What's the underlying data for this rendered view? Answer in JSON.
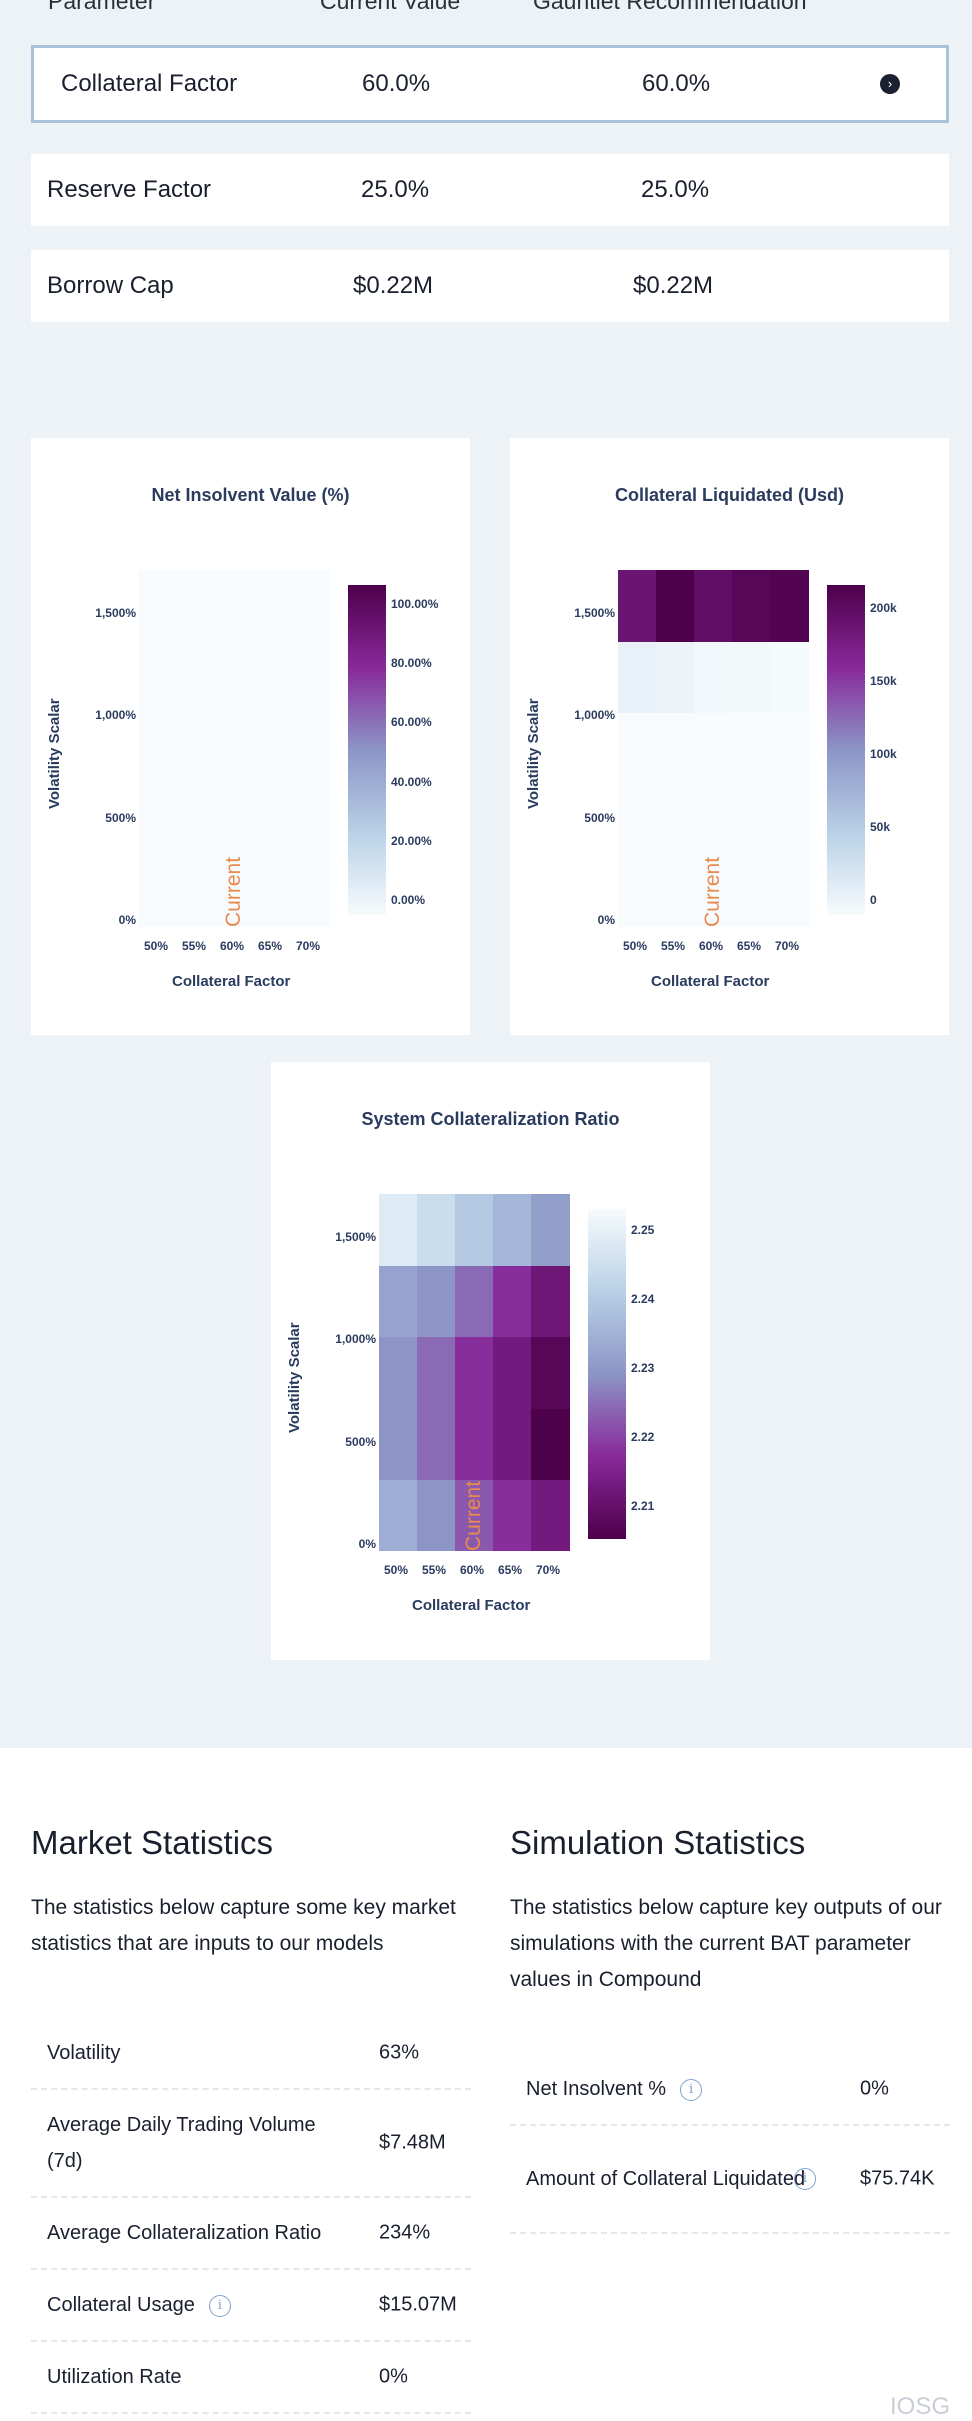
{
  "params": {
    "headers": [
      "Parameter",
      "Current Value",
      "Gauntlet Recommendation"
    ],
    "rows": [
      {
        "name": "Collateral Factor",
        "current": "60.0%",
        "recommended": "60.0%",
        "selected": true
      },
      {
        "name": "Reserve Factor",
        "current": "25.0%",
        "recommended": "25.0%",
        "selected": false
      },
      {
        "name": "Borrow Cap",
        "current": "$0.22M",
        "recommended": "$0.22M",
        "selected": false
      }
    ]
  },
  "chart_data": [
    {
      "type": "heatmap",
      "title": "Net Insolvent Value (%)",
      "xlabel": "Collateral Factor",
      "ylabel": "Volatility Scalar",
      "x": [
        "50%",
        "55%",
        "60%",
        "65%",
        "70%"
      ],
      "y": [
        "0%",
        "500%",
        "1,000%",
        "1,500%"
      ],
      "z": [
        [
          0,
          0,
          0,
          0,
          0
        ],
        [
          0,
          0,
          0,
          0,
          0
        ],
        [
          0,
          0,
          0,
          0,
          0
        ],
        [
          0,
          0,
          0,
          0,
          0
        ],
        [
          0,
          0,
          0,
          0,
          0
        ]
      ],
      "colorbar_ticks": [
        "0.00%",
        "20.00%",
        "40.00%",
        "60.00%",
        "80.00%",
        "100.00%"
      ],
      "annotation": "Current",
      "annotation_x": "60%"
    },
    {
      "type": "heatmap",
      "title": "Collateral Liquidated (Usd)",
      "xlabel": "Collateral Factor",
      "ylabel": "Volatility Scalar",
      "x": [
        "50%",
        "55%",
        "60%",
        "65%",
        "70%"
      ],
      "y": [
        "0%",
        "500%",
        "1,000%",
        "1,500%"
      ],
      "z": [
        [
          0,
          0,
          0,
          0,
          0
        ],
        [
          0,
          0,
          0,
          0,
          0
        ],
        [
          0,
          0,
          0,
          0,
          0
        ],
        [
          14000,
          10000,
          6000,
          4000,
          2000
        ],
        [
          205000,
          235000,
          215000,
          225000,
          230000
        ]
      ],
      "colorbar_ticks": [
        "0",
        "50k",
        "100k",
        "150k",
        "200k"
      ],
      "annotation": "Current",
      "annotation_x": "60%"
    },
    {
      "type": "heatmap",
      "title": "System Collateralization Ratio",
      "xlabel": "Collateral Factor",
      "ylabel": "Volatility Scalar",
      "x": [
        "50%",
        "55%",
        "60%",
        "65%",
        "70%"
      ],
      "y": [
        "0%",
        "500%",
        "1,000%",
        "1,500%"
      ],
      "z": [
        [
          2.235,
          2.23,
          2.223,
          2.218,
          2.213
        ],
        [
          2.23,
          2.225,
          2.218,
          2.213,
          2.205
        ],
        [
          2.23,
          2.225,
          2.218,
          2.213,
          2.207
        ],
        [
          2.233,
          2.23,
          2.225,
          2.218,
          2.212
        ],
        [
          2.25,
          2.246,
          2.241,
          2.237,
          2.232
        ]
      ],
      "colorbar_ticks": [
        "2.21",
        "2.22",
        "2.23",
        "2.24",
        "2.25"
      ],
      "annotation": "Current",
      "annotation_x": "60%"
    }
  ],
  "market": {
    "title": "Market Statistics",
    "desc": "The statistics below capture some key market statistics that are inputs to our models",
    "rows": [
      {
        "label": "Volatility",
        "value": "63%"
      },
      {
        "label": "Average Daily Trading Volume (7d)",
        "value": "$7.48M"
      },
      {
        "label": "Average Collateralization Ratio",
        "value": "234%"
      },
      {
        "label": "Collateral Usage",
        "value": "$15.07M",
        "info": true
      },
      {
        "label": "Utilization Rate",
        "value": "0%"
      }
    ]
  },
  "simulation": {
    "title": "Simulation Statistics",
    "desc": "The statistics below capture key outputs of our simulations with the current BAT parameter values in Compound",
    "rows": [
      {
        "label": "Net Insolvent %",
        "value": "0%",
        "info": true
      },
      {
        "label": "Amount of Collateral Liquidated",
        "value": "$75.74K",
        "info": true
      }
    ]
  },
  "watermark": "IOSG",
  "info_glyph": "i",
  "chevron_glyph": "›",
  "colors": {
    "page_bg": "#edf2f6",
    "selected_border": "#a9c1d9",
    "current_label": "#e98a4e",
    "axis_text": "#2a3b5e"
  }
}
